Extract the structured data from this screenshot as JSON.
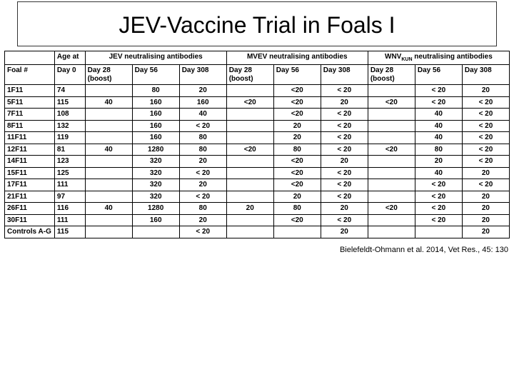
{
  "title": "JEV-Vaccine Trial in Foals I",
  "header_row1": {
    "blank": "",
    "age_at": "Age at",
    "jev": "JEV neutralising antibodies",
    "mvev": "MVEV neutralising antibodies",
    "wnv": "WNVₖᵤₙ neutralising antibodies"
  },
  "header_row2": {
    "foal": "Foal #",
    "day0": "Day 0",
    "d28a": "Day 28 (boost)",
    "d56a": "Day 56",
    "d308a": "Day 308",
    "d28b": "Day 28 (boost)",
    "d56b": "Day 56",
    "d308b": "Day 308",
    "d28c": "Day 28 (boost)",
    "d56c": "Day 56",
    "d308c": "Day 308"
  },
  "rows": [
    {
      "foal": "1F11",
      "day0": "74",
      "j28": "",
      "j56": "80",
      "j308": "20",
      "m28": "",
      "m56": "<20",
      "m308": "< 20",
      "w28": "",
      "w56": "< 20",
      "w308": "20"
    },
    {
      "foal": "5F11",
      "day0": "115",
      "j28": "40",
      "j56": "160",
      "j308": "160",
      "m28": "<20",
      "m56": "<20",
      "m308": "20",
      "w28": "<20",
      "w56": "< 20",
      "w308": "< 20"
    },
    {
      "foal": "7F11",
      "day0": "108",
      "j28": "",
      "j56": "160",
      "j308": "40",
      "m28": "",
      "m56": "<20",
      "m308": "< 20",
      "w28": "",
      "w56": "40",
      "w308": "< 20"
    },
    {
      "foal": "8F11",
      "day0": "132",
      "j28": "",
      "j56": "160",
      "j308": "< 20",
      "m28": "",
      "m56": "20",
      "m308": "< 20",
      "w28": "",
      "w56": "40",
      "w308": "< 20"
    },
    {
      "foal": "11F11",
      "day0": "119",
      "j28": "",
      "j56": "160",
      "j308": "80",
      "m28": "",
      "m56": "20",
      "m308": "< 20",
      "w28": "",
      "w56": "40",
      "w308": "< 20"
    },
    {
      "foal": "12F11",
      "day0": "81",
      "j28": "40",
      "j56": "1280",
      "j308": "80",
      "m28": "<20",
      "m56": "80",
      "m308": "< 20",
      "w28": "<20",
      "w56": "80",
      "w308": "< 20"
    },
    {
      "foal": "14F11",
      "day0": "123",
      "j28": "",
      "j56": "320",
      "j308": "20",
      "m28": "",
      "m56": "<20",
      "m308": "20",
      "w28": "",
      "w56": "20",
      "w308": "< 20"
    },
    {
      "foal": "15F11",
      "day0": "125",
      "j28": "",
      "j56": "320",
      "j308": "< 20",
      "m28": "",
      "m56": "<20",
      "m308": "< 20",
      "w28": "",
      "w56": "40",
      "w308": "20"
    },
    {
      "foal": "17F11",
      "day0": "111",
      "j28": "",
      "j56": "320",
      "j308": "20",
      "m28": "",
      "m56": "<20",
      "m308": "< 20",
      "w28": "",
      "w56": "< 20",
      "w308": "< 20"
    },
    {
      "foal": "21F11",
      "day0": "97",
      "j28": "",
      "j56": "320",
      "j308": "< 20",
      "m28": "",
      "m56": "20",
      "m308": "< 20",
      "w28": "",
      "w56": "< 20",
      "w308": "20"
    },
    {
      "foal": "26F11",
      "day0": "116",
      "j28": "40",
      "j56": "1280",
      "j308": "80",
      "m28": "20",
      "m56": "80",
      "m308": "20",
      "w28": "<20",
      "w56": "< 20",
      "w308": "20"
    },
    {
      "foal": "30F11",
      "day0": "111",
      "j28": "",
      "j56": "160",
      "j308": "20",
      "m28": "",
      "m56": "<20",
      "m308": "< 20",
      "w28": "",
      "w56": "< 20",
      "w308": "20"
    },
    {
      "foal": "Controls A-G",
      "day0": "115",
      "j28": "",
      "j56": "",
      "j308": "< 20",
      "m28": "",
      "m56": "",
      "m308": "20",
      "w28": "",
      "w56": "",
      "w308": "20"
    }
  ],
  "footer": "Bielefeldt-Ohmann et al. 2014, Vet Res., 45: 130"
}
